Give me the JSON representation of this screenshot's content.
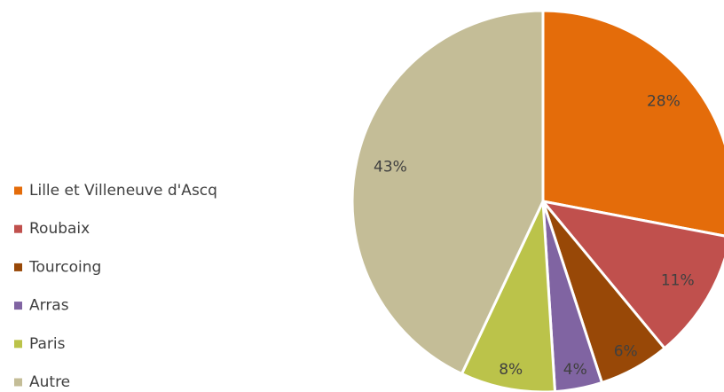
{
  "chart_data": {
    "type": "pie",
    "categories": [
      "Lille et Villeneuve d'Ascq",
      "Roubaix",
      "Tourcoing",
      "Arras",
      "Paris",
      "Autre"
    ],
    "values": [
      28,
      11,
      6,
      4,
      8,
      43
    ],
    "value_labels": [
      "28%",
      "11%",
      "6%",
      "4%",
      "8%",
      "43%"
    ],
    "colors": [
      "#e46c0a",
      "#c0504d",
      "#984807",
      "#8064a2",
      "#bbc34a",
      "#c4bd97"
    ],
    "legend": "left"
  }
}
